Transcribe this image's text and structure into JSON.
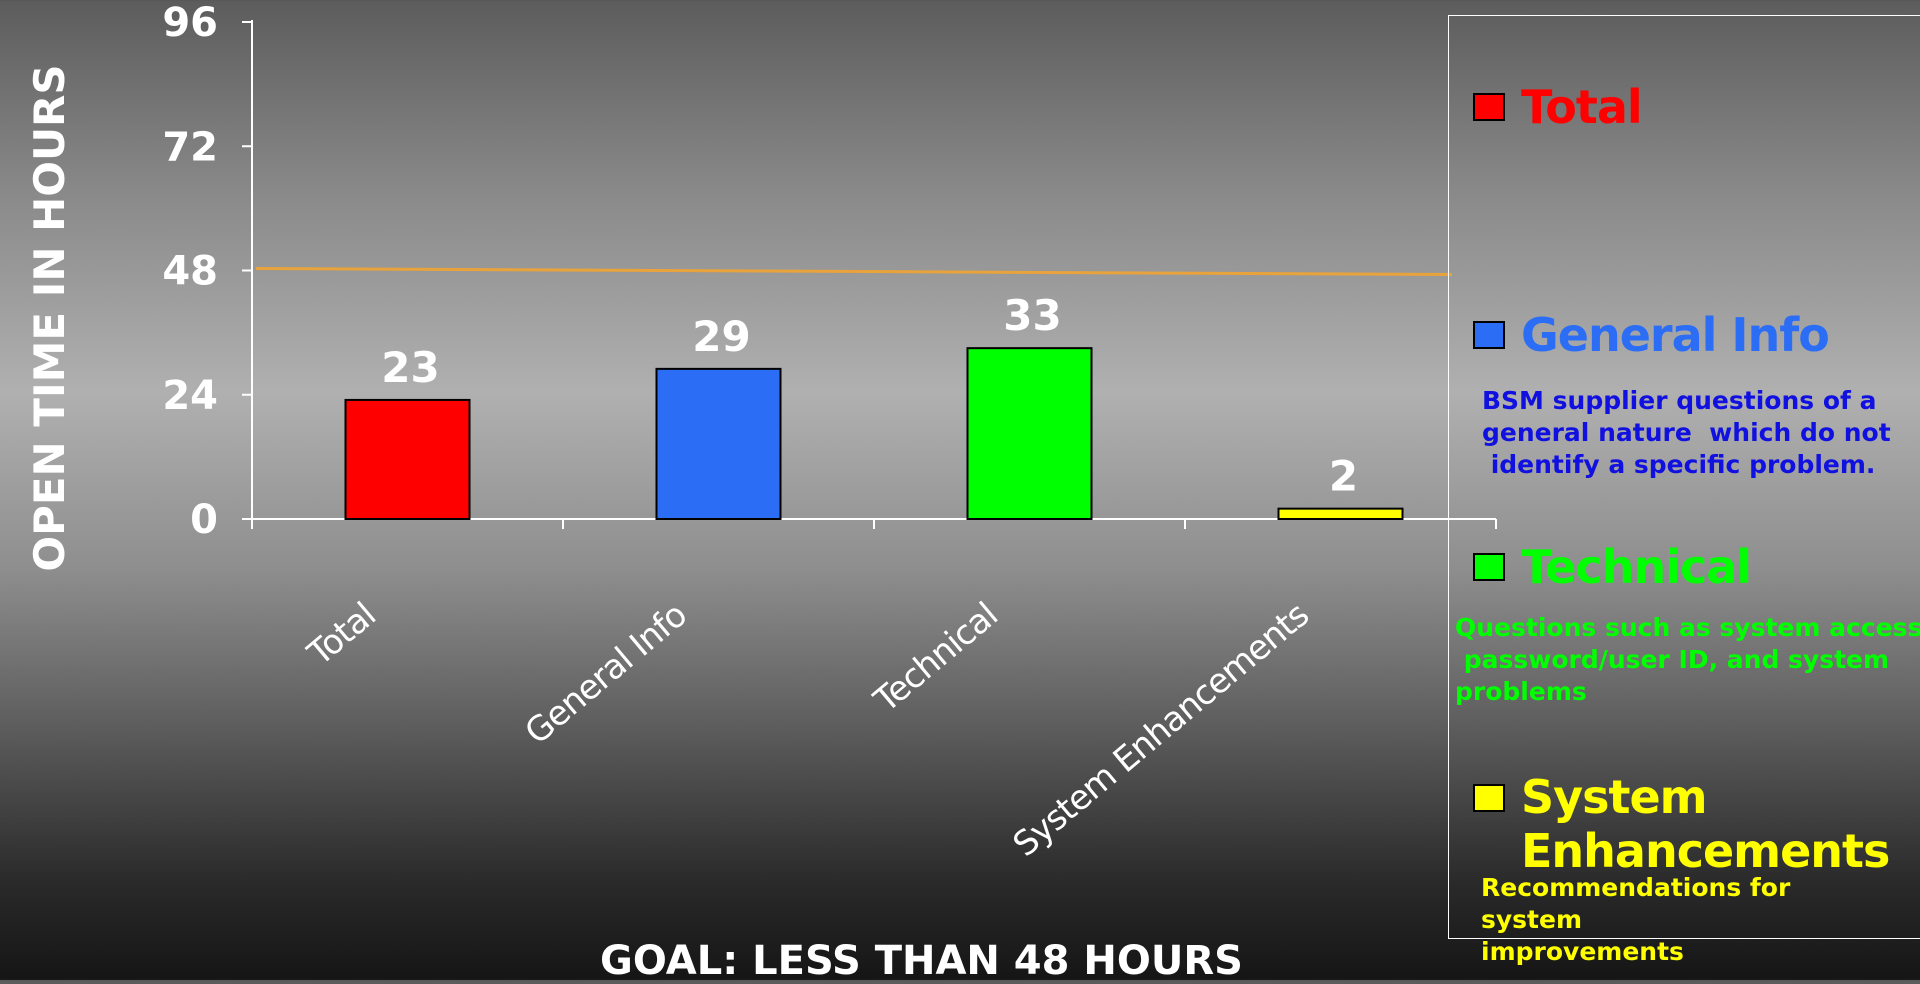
{
  "chart_data": {
    "type": "bar",
    "categories": [
      "Total",
      "General Info",
      "Technical",
      "System Enhancements"
    ],
    "values": [
      23,
      29,
      33,
      2
    ],
    "bar_colors": [
      "#ff0000",
      "#2b6ef5",
      "#00ff00",
      "#ffff00"
    ],
    "ylabel": "OPEN TIME IN HOURS",
    "ylim": [
      0,
      96
    ],
    "yticks": [
      0,
      24,
      48,
      72,
      96
    ],
    "goal_line": {
      "value": 48,
      "color": "#e8a33c"
    },
    "grid": false,
    "legend_placement": "right"
  },
  "goal_text": "GOAL:  LESS THAN 48 HOURS",
  "legend": [
    {
      "title": "Total",
      "color": "#ff0000",
      "text_color": "#ff0000",
      "desc": ""
    },
    {
      "title": "General Info",
      "color": "#2b6ef5",
      "text_color": "#2b6ef5",
      "desc": "BSM supplier questions of a\ngeneral nature  which do not\n identify a specific problem.",
      "desc_color": "#1010e0"
    },
    {
      "title": "Technical",
      "color": "#00ff00",
      "text_color": "#00ff00",
      "desc": "Questions such as system access\n password/user ID, and system\nproblems",
      "desc_color": "#00ff00"
    },
    {
      "title": "System\nEnhancements",
      "color": "#ffff00",
      "text_color": "#ffff00",
      "desc": "Recommendations for\nsystem\nimprovements",
      "desc_color": "#ffff00"
    }
  ]
}
